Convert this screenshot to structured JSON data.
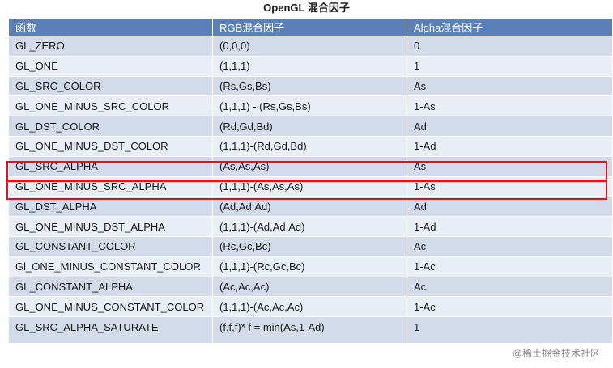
{
  "title": "OpenGL 混合因子",
  "table": {
    "headers": [
      "函数",
      "RGB混合因子",
      "Alpha混合因子"
    ],
    "rows": [
      [
        "GL_ZERO",
        "(0,0,0)",
        "0"
      ],
      [
        "GL_ONE",
        "(1,1,1)",
        "1"
      ],
      [
        "GL_SRC_COLOR",
        "(Rs,Gs,Bs)",
        "As"
      ],
      [
        "GL_ONE_MINUS_SRC_COLOR",
        "(1,1,1) - (Rs,Gs,Bs)",
        "1-As"
      ],
      [
        "GL_DST_COLOR",
        "(Rd,Gd,Bd)",
        "Ad"
      ],
      [
        "GL_ONE_MINUS_DST_COLOR",
        "(1,1,1)-(Rd,Gd,Bd)",
        "1-Ad"
      ],
      [
        "GL_SRC_ALPHA",
        "(As,As,As)",
        "As"
      ],
      [
        "GL_ONE_MINUS_SRC_ALPHA",
        "(1,1,1)-(As,As,As)",
        "1-As"
      ],
      [
        "GL_DST_ALPHA",
        "(Ad,Ad,Ad)",
        "Ad"
      ],
      [
        "GL_ONE_MINUS_DST_ALPHA",
        "(1,1,1)-(Ad,Ad,Ad)",
        "1-Ad"
      ],
      [
        "GL_CONSTANT_COLOR",
        "(Rc,Gc,Bc)",
        "Ac"
      ],
      [
        "Gl_ONE_MINUS_CONSTANT_COLOR",
        "(1,1,1)-(Rc,Gc,Bc)",
        "1-Ac"
      ],
      [
        "GL_CONSTANT_ALPHA",
        "(Ac,Ac,Ac)",
        "Ac"
      ],
      [
        "GL_ONE_MINUS_CONSTANT_COLOR",
        "(1,1,1)-(Ac,Ac,Ac)",
        "1-Ac"
      ],
      [
        "GL_SRC_ALPHA_SATURATE",
        "(f,f,f)*   f = min(As,1-Ad)",
        "1"
      ]
    ],
    "highlighted_rows": [
      "GL_SRC_ALPHA",
      "GL_ONE_MINUS_SRC_ALPHA"
    ]
  },
  "colors": {
    "header_bg": "#5b7fb7",
    "row_odd": "#d3dbea",
    "row_even": "#e9edf5",
    "highlight_border": "#e0121b"
  },
  "watermark": "@稀土掘金技术社区"
}
